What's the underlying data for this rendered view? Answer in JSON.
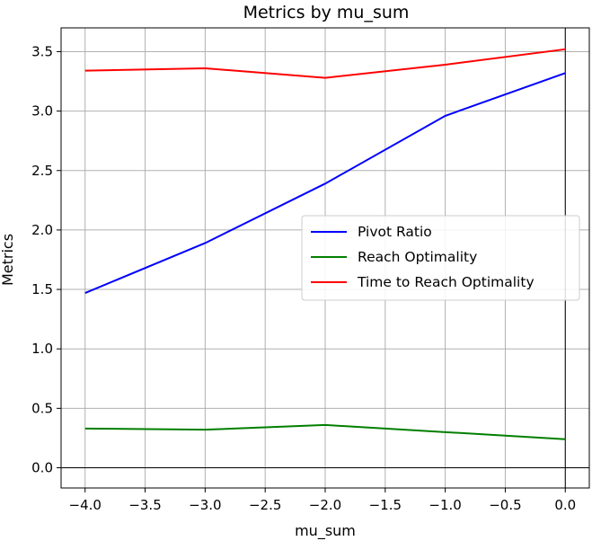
{
  "chart_data": {
    "type": "line",
    "title": "Metrics by mu_sum",
    "xlabel": "mu_sum",
    "ylabel": "Metrics",
    "x": [
      -4.0,
      -3.0,
      -2.0,
      -1.0,
      0.0
    ],
    "xlim": [
      -4.2,
      0.2
    ],
    "ylim": [
      -0.17,
      3.7
    ],
    "xticks": [
      -4.0,
      -3.5,
      -3.0,
      -2.5,
      -2.0,
      -1.5,
      -1.0,
      -0.5,
      0.0
    ],
    "xtick_labels": [
      "−4.0",
      "−3.5",
      "−3.0",
      "−2.5",
      "−2.0",
      "−1.5",
      "−1.0",
      "−0.5",
      "0.0"
    ],
    "yticks": [
      0.0,
      0.5,
      1.0,
      1.5,
      2.0,
      2.5,
      3.0,
      3.5
    ],
    "ytick_labels": [
      "0.0",
      "0.5",
      "1.0",
      "1.5",
      "2.0",
      "2.5",
      "3.0",
      "3.5"
    ],
    "grid": true,
    "legend_position": "center-right",
    "series": [
      {
        "name": "Pivot Ratio",
        "color": "#0000ff",
        "values": [
          1.47,
          1.89,
          2.39,
          2.96,
          3.32
        ]
      },
      {
        "name": "Reach Optimality",
        "color": "#007f00",
        "values": [
          0.33,
          0.32,
          0.36,
          0.3,
          0.24
        ]
      },
      {
        "name": "Time to Reach Optimality",
        "color": "#ff0000",
        "values": [
          3.34,
          3.36,
          3.28,
          3.39,
          3.52
        ]
      }
    ]
  }
}
